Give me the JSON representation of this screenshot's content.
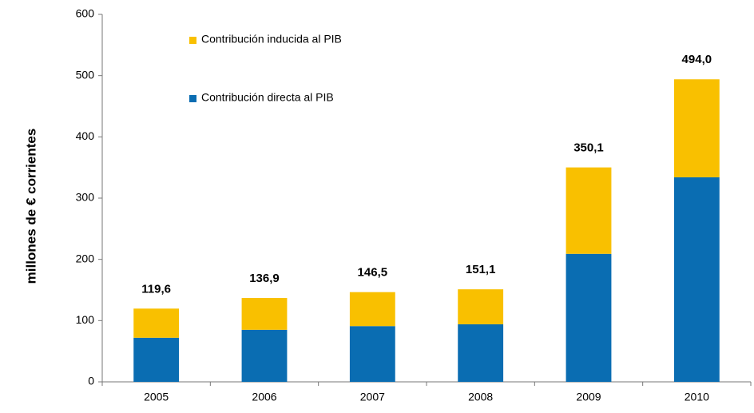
{
  "chart_data": {
    "type": "bar",
    "stacked": true,
    "y_label": "millones de € corrientes",
    "categories": [
      "2005",
      "2006",
      "2007",
      "2008",
      "2009",
      "2010"
    ],
    "series": [
      {
        "name": "Contribución directa al PIB",
        "color": "#0a6db2",
        "values": [
          72,
          85,
          91,
          94,
          209,
          334
        ]
      },
      {
        "name": "Contribución inducida al PIB",
        "color": "#f9c000",
        "values": [
          47.6,
          51.9,
          55.5,
          57.1,
          141.1,
          160
        ]
      }
    ],
    "totals": [
      119.6,
      136.9,
      146.5,
      151.1,
      350.1,
      494.0
    ],
    "total_labels": [
      "119,6",
      "136,9",
      "146,5",
      "151,1",
      "350,1",
      "494,0"
    ],
    "ylim": [
      0,
      600
    ],
    "yticks": [
      0,
      100,
      200,
      300,
      400,
      500,
      600
    ]
  }
}
